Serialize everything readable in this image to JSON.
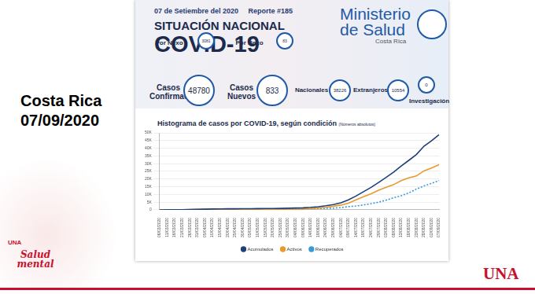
{
  "slide": {
    "title_lines": [
      "Costa Rica",
      "07/09/2020"
    ],
    "logo_left_small": "UNA",
    "logo_left": "Salud mental",
    "logo_right": "UNA"
  },
  "dashboard": {
    "date": "07 de Setiembre del 2020",
    "report": "Reporte #185",
    "heading": "SITUACIÓN NACIONAL",
    "subheading": "COVID-19",
    "ministry": [
      "Ministerio",
      "de Salud",
      "Costa Rica"
    ],
    "stats": [
      {
        "label": "Por Nexo",
        "value": 3081
      },
      {
        "label": "Por Nexo",
        "value": 83
      },
      {
        "label": "Casos Confirmados",
        "value": 48780
      },
      {
        "label": "Casos Nuevos",
        "value": 833
      },
      {
        "label": "Nacionales",
        "value": 38226
      },
      {
        "label": "Extranjeros",
        "value": 10554
      },
      {
        "label": "Investigación",
        "value": 0
      }
    ]
  },
  "chart_data": {
    "type": "line",
    "title": "Histograma de casos por COVID-19, según condición",
    "subtitle": "(Números absolutos)",
    "categories": [
      "06/03/2020",
      "11/03/2020",
      "16/03/2020",
      "21/03/2020",
      "26/03/2020",
      "31/03/2020",
      "05/04/2020",
      "10/04/2020",
      "15/04/2020",
      "20/04/2020",
      "25/04/2020",
      "30/04/2020",
      "05/05/2020",
      "10/05/2020",
      "15/05/2020",
      "20/05/2020",
      "25/05/2020",
      "30/05/2020",
      "04/06/2020",
      "09/06/2020",
      "14/06/2020",
      "19/06/2020",
      "24/06/2020",
      "29/06/2020",
      "04/07/2020",
      "09/07/2020",
      "14/07/2020",
      "19/07/2020",
      "24/07/2020",
      "29/07/2020",
      "03/08/2020",
      "08/08/2020",
      "13/08/2020",
      "18/08/2020",
      "23/08/2020",
      "28/08/2020",
      "02/09/2020",
      "07/09/2020"
    ],
    "series": [
      {
        "name": "Acumulados",
        "color": "#1f3f7a",
        "line_style": "solid",
        "marker": "none",
        "values": [
          1,
          27,
          41,
          117,
          231,
          347,
          454,
          558,
          612,
          669,
          705,
          719,
          761,
          794,
          843,
          911,
          956,
          1047,
          1194,
          1342,
          1612,
          2058,
          2684,
          3459,
          4621,
          6485,
          8986,
          11811,
          14600,
          17820,
          21070,
          24507,
          28465,
          32134,
          35890,
          41287,
          44865,
          48780
        ]
      },
      {
        "name": "Activos",
        "color": "#e89a2c",
        "line_style": "solid",
        "marker": "none",
        "values": [
          1,
          27,
          41,
          117,
          229,
          341,
          431,
          518,
          547,
          553,
          499,
          411,
          303,
          285,
          283,
          300,
          296,
          357,
          484,
          582,
          822,
          1198,
          1670,
          2339,
          3100,
          4360,
          6440,
          8550,
          10500,
          12700,
          14600,
          16400,
          19000,
          20800,
          22000,
          25300,
          27200,
          29300
        ]
      },
      {
        "name": "Recuperados",
        "color": "#3a9ad9",
        "line_style": "dotted",
        "marker": "none",
        "values": [
          0,
          0,
          0,
          0,
          2,
          4,
          21,
          37,
          60,
          110,
          200,
          300,
          450,
          500,
          550,
          600,
          650,
          680,
          700,
          750,
          780,
          850,
          1000,
          1100,
          1500,
          2100,
          2500,
          3200,
          4000,
          5000,
          6300,
          7900,
          9200,
          11000,
          13500,
          15500,
          17200,
          19000
        ]
      }
    ],
    "ylim": [
      0,
      50000
    ],
    "yticks": [
      0,
      {
        "value": 5000,
        "label": "5K"
      },
      {
        "value": 10000,
        "label": "10K"
      },
      {
        "value": 15000,
        "label": "15K"
      },
      {
        "value": 20000,
        "label": "20K"
      },
      {
        "value": 25000,
        "label": "25K"
      },
      {
        "value": 30000,
        "label": "30K"
      },
      {
        "value": 35000,
        "label": "35K"
      },
      {
        "value": 40000,
        "label": "40K"
      },
      {
        "value": 45000,
        "label": "45K"
      },
      {
        "value": 50000,
        "label": "50K"
      }
    ],
    "grid": true,
    "legend": "bottom"
  }
}
